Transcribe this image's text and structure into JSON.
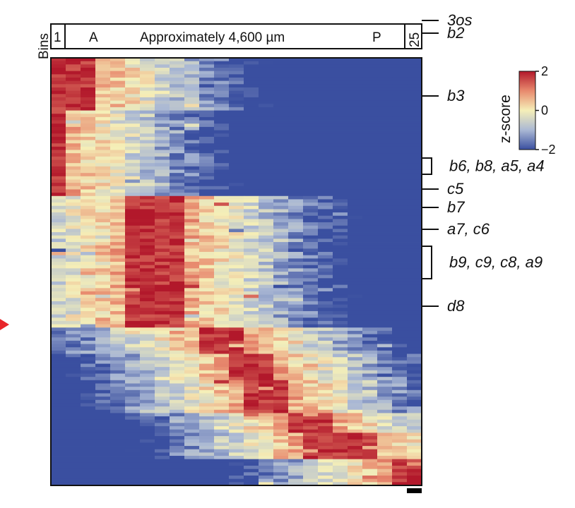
{
  "chart_data": {
    "type": "heatmap",
    "rows_description_hidden": "",
    "bins_label": "Bins",
    "bin_first": "1",
    "bin_last": "25",
    "axis_letters": {
      "anterior": "A",
      "posterior": "P"
    },
    "axis_span": "Approximately 4,600 µm",
    "colorbar": {
      "title": "z-score",
      "ticks": [
        {
          "value": 2,
          "label": "2"
        },
        {
          "value": 0,
          "label": "0"
        },
        {
          "value": -2,
          "label": "−2"
        }
      ],
      "range": [
        -2,
        2
      ],
      "colors": {
        "high": "#b2182b",
        "mid": "#f5efb8",
        "low": "#3a4fa0"
      }
    },
    "num_bins": 25,
    "num_rows": 130,
    "gene_groups": [
      {
        "label": "3os",
        "row_start": 0,
        "row_end": 16,
        "peak_bin_start": 0,
        "peak_bin_end": 2
      },
      {
        "label": "b2",
        "row_start": 16,
        "row_end": 42,
        "peak_bin_start": 0,
        "peak_bin_end": 0
      },
      {
        "label": "b3",
        "row_start": 42,
        "row_end": 82,
        "peak_bin_start": 5,
        "peak_bin_end": 8
      },
      {
        "label": "b6, b8, a5, a4",
        "row_start": 82,
        "row_end": 90,
        "peak_bin_start": 10,
        "peak_bin_end": 12
      },
      {
        "label": "c5",
        "row_start": 90,
        "row_end": 98,
        "peak_bin_start": 12,
        "peak_bin_end": 14
      },
      {
        "label": "b7",
        "row_start": 98,
        "row_end": 108,
        "peak_bin_start": 13,
        "peak_bin_end": 15
      },
      {
        "label": "a7, c6",
        "row_start": 108,
        "row_end": 114,
        "peak_bin_start": 16,
        "peak_bin_end": 18
      },
      {
        "label": "b9, c9, c8, a9",
        "row_start": 114,
        "row_end": 122,
        "peak_bin_start": 17,
        "peak_bin_end": 21
      },
      {
        "label": "d8",
        "row_start": 122,
        "row_end": 130,
        "peak_bin_start": 23,
        "peak_bin_end": 24
      }
    ],
    "group_markers": [
      {
        "label": "3os",
        "kind": "tick",
        "row": 29
      },
      {
        "label": "b2",
        "kind": "tick",
        "row": 47
      },
      {
        "label": "b3",
        "kind": "tick",
        "row": 136
      },
      {
        "label": "b6, b8, a5, a4",
        "kind": "bracket",
        "row_start": 224,
        "row_end": 247
      },
      {
        "label": "c5",
        "kind": "tick",
        "row": 268
      },
      {
        "label": "b7",
        "kind": "tick",
        "row": 294
      },
      {
        "label": "a7, c6",
        "kind": "tick",
        "row": 325
      },
      {
        "label": "b9, c9, c8, a9",
        "kind": "bracket",
        "row_start": 349,
        "row_end": 395
      },
      {
        "label": "d8",
        "kind": "tick",
        "row": 434
      }
    ]
  }
}
